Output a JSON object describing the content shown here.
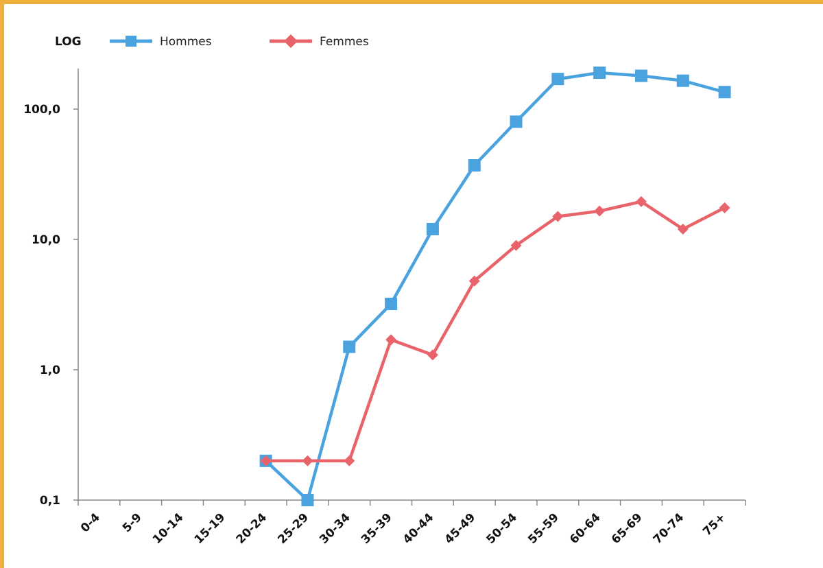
{
  "chart_data": {
    "type": "line",
    "yscale": "log",
    "scale_label": "LOG",
    "categories": [
      "0-4",
      "5-9",
      "10-14",
      "15-19",
      "20-24",
      "25-29",
      "30-34",
      "35-39",
      "40-44",
      "45-49",
      "50-54",
      "55-59",
      "60-64",
      "65-69",
      "70-74",
      "75+"
    ],
    "ylim": [
      0.1,
      200
    ],
    "yticks": [
      {
        "value": 0.1,
        "label": "0,1"
      },
      {
        "value": 1,
        "label": "1,0"
      },
      {
        "value": 10,
        "label": "10,0"
      },
      {
        "value": 100,
        "label": "100,0"
      }
    ],
    "grid": false,
    "legend_position": "top-left",
    "series": [
      {
        "name": "Hommes",
        "color": "#4aa3df",
        "marker": "square",
        "values": [
          null,
          null,
          null,
          null,
          0.2,
          0.1,
          1.5,
          3.2,
          12,
          37,
          80,
          170,
          190,
          180,
          165,
          135
        ]
      },
      {
        "name": "Femmes",
        "color": "#e8646a",
        "marker": "diamond",
        "values": [
          null,
          null,
          null,
          null,
          0.2,
          0.2,
          0.2,
          1.7,
          1.3,
          4.8,
          9,
          15,
          16.5,
          19.5,
          12,
          17.5
        ]
      }
    ]
  }
}
